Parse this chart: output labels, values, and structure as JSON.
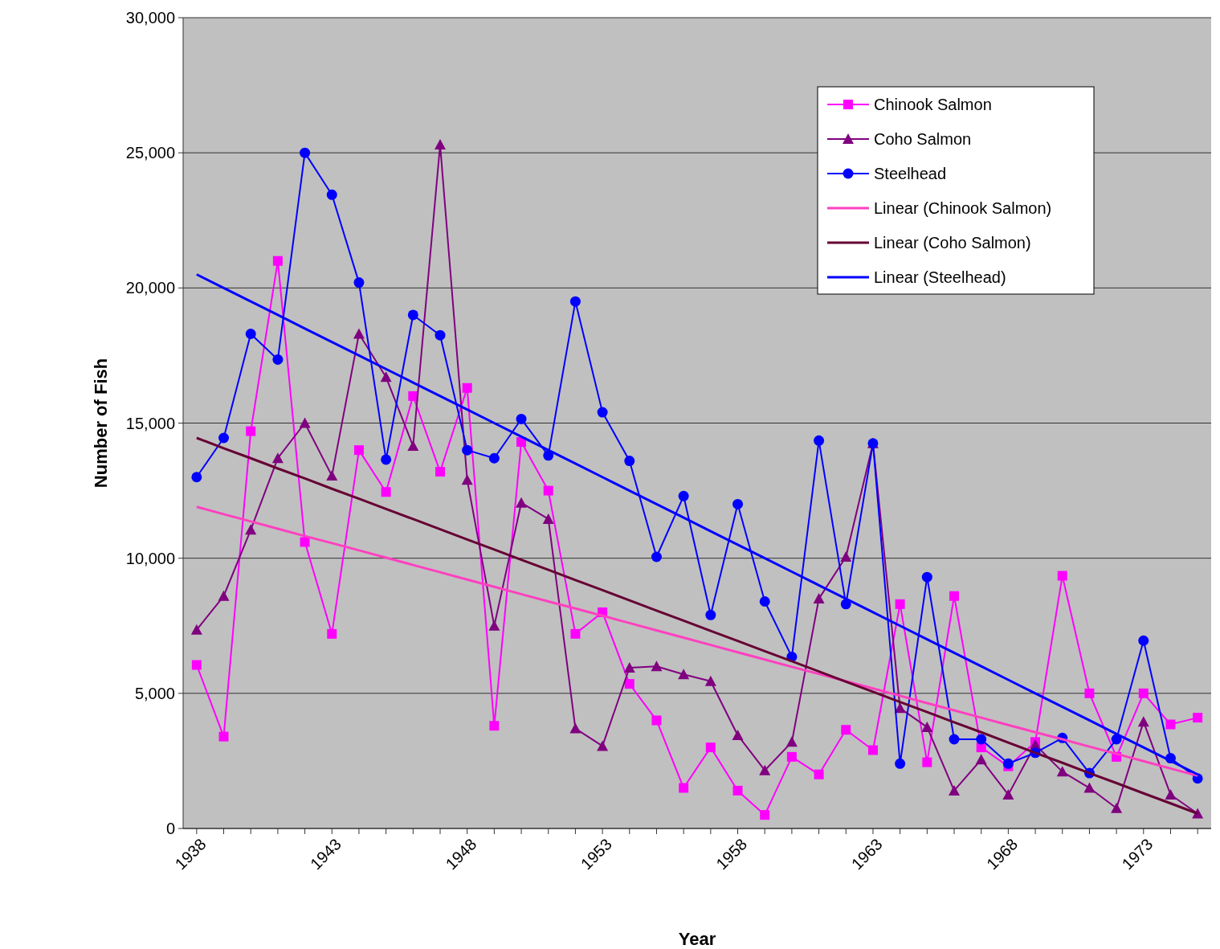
{
  "chart_data": {
    "type": "line",
    "xlabel": "Year",
    "ylabel": "Number of Fish",
    "x": [
      1938,
      1939,
      1940,
      1941,
      1942,
      1943,
      1944,
      1945,
      1946,
      1947,
      1948,
      1949,
      1950,
      1951,
      1952,
      1953,
      1954,
      1955,
      1956,
      1957,
      1958,
      1959,
      1960,
      1961,
      1962,
      1963,
      1964,
      1965,
      1966,
      1967,
      1968,
      1969,
      1970,
      1971,
      1972,
      1973,
      1974,
      1975
    ],
    "xlim": [
      1937.5,
      1975.5
    ],
    "xticks": [
      1938,
      {
        "value": 1939,
        "label": null
      },
      {
        "value": 1940,
        "label": null
      },
      {
        "value": 1941,
        "label": null
      },
      {
        "value": 1942,
        "label": null
      },
      1943,
      {
        "value": 1944,
        "label": null
      },
      {
        "value": 1945,
        "label": null
      },
      {
        "value": 1946,
        "label": null
      },
      {
        "value": 1947,
        "label": null
      },
      1948,
      {
        "value": 1949,
        "label": null
      },
      {
        "value": 1950,
        "label": null
      },
      {
        "value": 1951,
        "label": null
      },
      {
        "value": 1952,
        "label": null
      },
      1953,
      {
        "value": 1954,
        "label": null
      },
      {
        "value": 1955,
        "label": null
      },
      {
        "value": 1956,
        "label": null
      },
      {
        "value": 1957,
        "label": null
      },
      1958,
      {
        "value": 1959,
        "label": null
      },
      {
        "value": 1960,
        "label": null
      },
      {
        "value": 1961,
        "label": null
      },
      {
        "value": 1962,
        "label": null
      },
      1963,
      {
        "value": 1964,
        "label": null
      },
      {
        "value": 1965,
        "label": null
      },
      {
        "value": 1966,
        "label": null
      },
      {
        "value": 1967,
        "label": null
      },
      1968,
      {
        "value": 1969,
        "label": null
      },
      {
        "value": 1970,
        "label": null
      },
      {
        "value": 1971,
        "label": null
      },
      {
        "value": 1972,
        "label": null
      },
      1973,
      {
        "value": 1974,
        "label": null
      },
      {
        "value": 1975,
        "label": null
      }
    ],
    "ylim": [
      0,
      30000
    ],
    "yticks": [
      0,
      {
        "value": 5000,
        "label": "5,000"
      },
      {
        "value": 10000,
        "label": "10,000"
      },
      {
        "value": 15000,
        "label": "15,000"
      },
      {
        "value": 20000,
        "label": "20,000"
      },
      {
        "value": 25000,
        "label": "25,000"
      },
      {
        "value": 30000,
        "label": "30,000"
      }
    ],
    "grid": "y",
    "legend": "top right",
    "series": [
      {
        "name": "Chinook Salmon",
        "color": "#ff00ff",
        "marker": "square",
        "values": [
          6050,
          3400,
          14700,
          21000,
          10600,
          7200,
          14000,
          12450,
          16000,
          13200,
          16300,
          3800,
          14300,
          12500,
          7200,
          8000,
          5350,
          4000,
          1500,
          3000,
          1400,
          500,
          2650,
          2000,
          3650,
          2900,
          8300,
          2450,
          8600,
          3000,
          2300,
          3200,
          9350,
          5000,
          2650,
          5000,
          3850,
          4100
        ]
      },
      {
        "name": "Coho Salmon",
        "color": "#800080",
        "marker": "triangle",
        "values": [
          7350,
          8600,
          11050,
          13700,
          15000,
          13050,
          18300,
          16700,
          14150,
          25300,
          12900,
          7500,
          12050,
          11450,
          3700,
          3050,
          5950,
          6000,
          5700,
          5450,
          3450,
          2150,
          3200,
          8500,
          10050,
          14250,
          4450,
          3750,
          1400,
          2550,
          1250,
          3100,
          2100,
          1500,
          750,
          3950,
          1250,
          550
        ]
      },
      {
        "name": "Steelhead",
        "color": "#0000ff",
        "marker": "circle",
        "values": [
          13000,
          14450,
          18300,
          17350,
          25000,
          23450,
          20200,
          13650,
          19000,
          18250,
          14000,
          13700,
          15150,
          13800,
          19500,
          15400,
          13600,
          10050,
          12300,
          7900,
          12000,
          8400,
          6350,
          14350,
          8300,
          14250,
          2400,
          9300,
          3300,
          3300,
          2400,
          2800,
          3350,
          2050,
          3300,
          6950,
          2600,
          1850
        ]
      },
      {
        "name": "Linear (Chinook Salmon)",
        "color": "#ff40c0",
        "marker": "none",
        "values": [
          11900,
          11630,
          11360,
          11090,
          10820,
          10560,
          10290,
          10020,
          9750,
          9480,
          9210,
          8940,
          8670,
          8400,
          8140,
          7870,
          7600,
          7330,
          7060,
          6790,
          6520,
          6250,
          5980,
          5720,
          5450,
          5180,
          4910,
          4640,
          4370,
          4100,
          3830,
          3560,
          3300,
          3030,
          2760,
          2490,
          2220,
          1950
        ]
      },
      {
        "name": "Linear (Coho Salmon)",
        "color": "#660033",
        "marker": "none",
        "values": [
          14450,
          14070,
          13700,
          13320,
          12950,
          12570,
          12200,
          11820,
          11450,
          11070,
          10690,
          10320,
          9940,
          9570,
          9190,
          8820,
          8440,
          8060,
          7690,
          7310,
          6940,
          6560,
          6190,
          5810,
          5430,
          5060,
          4680,
          4310,
          3930,
          3560,
          3180,
          2800,
          2430,
          2050,
          1680,
          1300,
          930,
          550
        ]
      },
      {
        "name": "Linear (Steelhead)",
        "color": "#0000ff",
        "marker": "none",
        "values": [
          20500,
          20000,
          19500,
          19000,
          18500,
          18000,
          17500,
          17000,
          16500,
          16000,
          15500,
          15000,
          14500,
          14000,
          13500,
          13000,
          12500,
          12000,
          11500,
          11000,
          10500,
          10000,
          9500,
          9000,
          8500,
          8000,
          7500,
          7000,
          6500,
          6000,
          5500,
          5000,
          4500,
          4000,
          3500,
          3000,
          2500,
          2000
        ]
      }
    ]
  }
}
